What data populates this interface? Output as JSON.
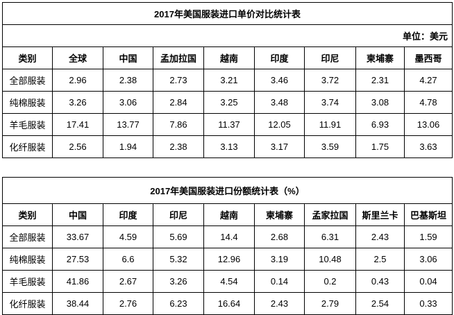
{
  "tables": [
    {
      "title": "2017年美国服装进口单价对比统计表",
      "unit": "单位：美元",
      "headers": [
        "类别",
        "全球",
        "中国",
        "孟加拉国",
        "越南",
        "印度",
        "印尼",
        "柬埔寨",
        "墨西哥"
      ],
      "rows": [
        [
          "全部服装",
          "2.96",
          "2.38",
          "2.73",
          "3.21",
          "3.46",
          "3.72",
          "2.31",
          "4.27"
        ],
        [
          "纯棉服装",
          "3.26",
          "3.06",
          "2.84",
          "3.25",
          "3.48",
          "3.74",
          "3.08",
          "4.78"
        ],
        [
          "羊毛服装",
          "17.41",
          "13.77",
          "7.86",
          "11.37",
          "12.05",
          "11.91",
          "6.93",
          "13.06"
        ],
        [
          "化纤服装",
          "2.56",
          "1.94",
          "2.38",
          "3.13",
          "3.17",
          "3.59",
          "1.75",
          "3.63"
        ]
      ]
    },
    {
      "title": "2017年美国服装进口份额统计表（%）",
      "headers": [
        "类别",
        "中国",
        "印度",
        "印尼",
        "越南",
        "柬埔寨",
        "孟家拉国",
        "斯里兰卡",
        "巴基斯坦"
      ],
      "rows": [
        [
          "全部服装",
          "33.67",
          "4.59",
          "5.69",
          "14.4",
          "2.68",
          "6.31",
          "2.43",
          "1.59"
        ],
        [
          "纯棉服装",
          "27.53",
          "6.6",
          "5.32",
          "12.96",
          "3.19",
          "10.48",
          "2.5",
          "3.06"
        ],
        [
          "羊毛服装",
          "41.86",
          "2.67",
          "3.26",
          "4.54",
          "0.14",
          "0.2",
          "0.43",
          "0.04"
        ],
        [
          "化纤服装",
          "38.44",
          "2.76",
          "6.23",
          "16.64",
          "2.43",
          "2.79",
          "2.54",
          "0.33"
        ]
      ]
    }
  ]
}
